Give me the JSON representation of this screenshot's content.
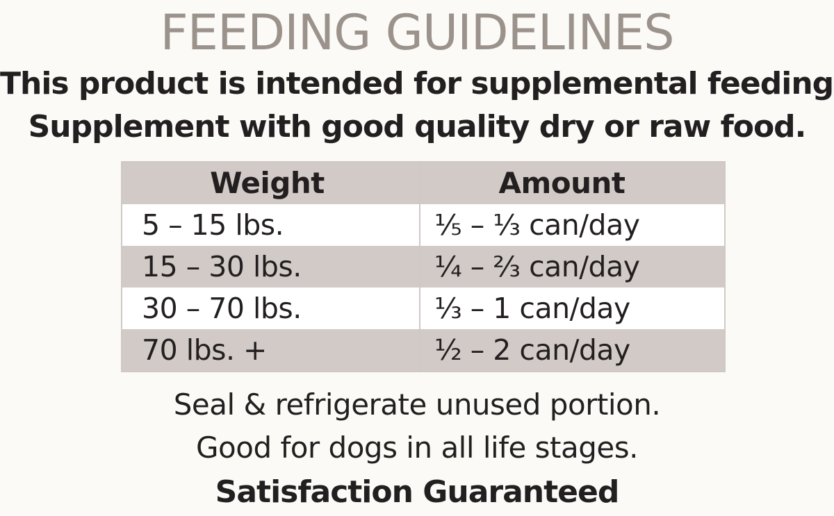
{
  "title": "FEEDING GUIDELINES",
  "intro": {
    "line1": "This product is intended for supplemental feeding.",
    "line2": "Supplement with good quality dry or raw food."
  },
  "table": {
    "headers": [
      "Weight",
      "Amount"
    ],
    "rows": [
      {
        "weight": "5 – 15 lbs.",
        "amount": "⅕ – ⅓ can/day"
      },
      {
        "weight": "15 – 30 lbs.",
        "amount": "¼ – ⅔ can/day"
      },
      {
        "weight": "30 – 70 lbs.",
        "amount": "⅓ – 1 can/day"
      },
      {
        "weight": "70 lbs. +",
        "amount": "½ – 2 can/day"
      }
    ]
  },
  "footer": {
    "line1": "Seal & refrigerate unused portion.",
    "line2": "Good for dogs in all life stages.",
    "line3": "Satisfaction Guaranteed"
  },
  "colors": {
    "title": "#9b928c",
    "text": "#231f20",
    "shaded_row": "#d1cac6",
    "background": "#fbfaf6"
  }
}
